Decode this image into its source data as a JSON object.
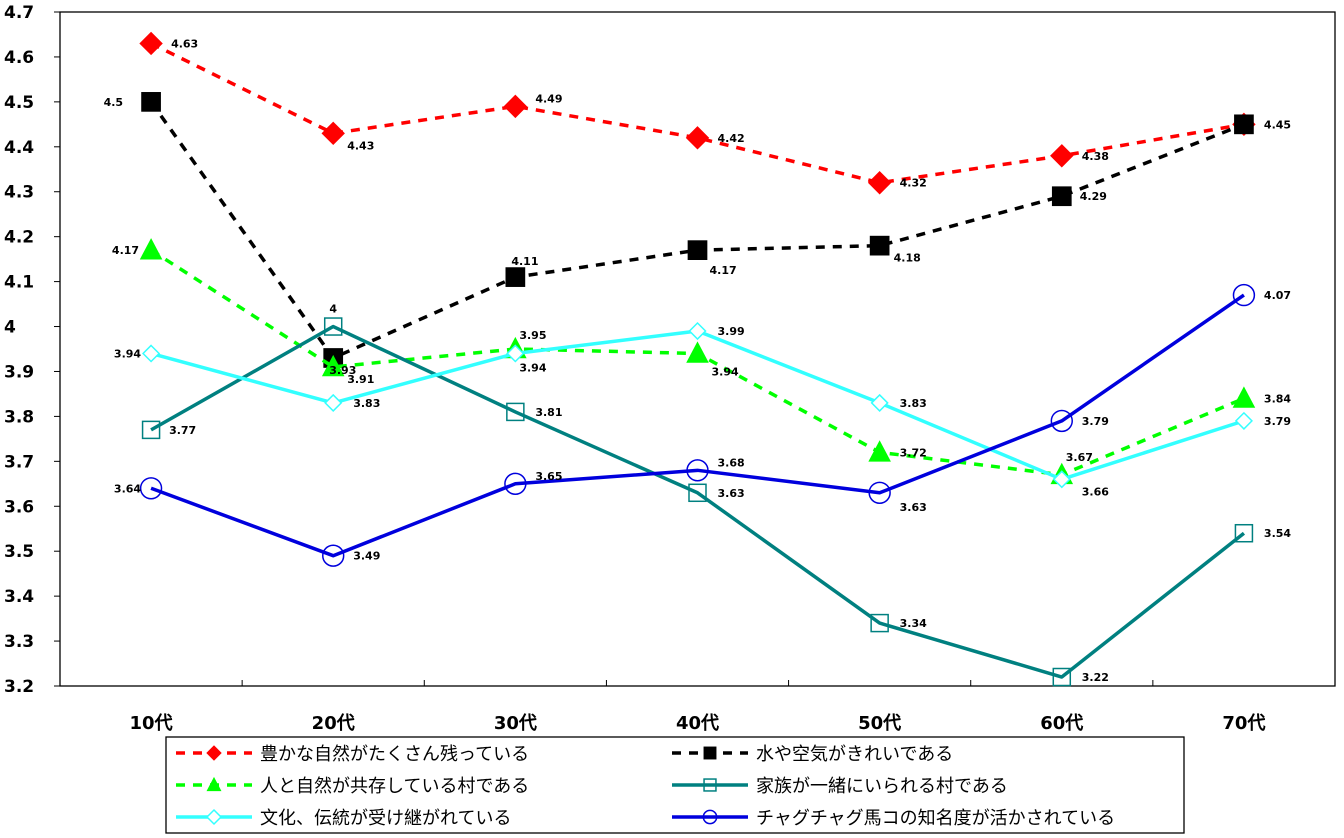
{
  "chart_data": {
    "type": "line",
    "categories": [
      "10代",
      "20代",
      "30代",
      "40代",
      "50代",
      "60代",
      "70代"
    ],
    "ylim": [
      3.2,
      4.7
    ],
    "yticks": [
      "3.2",
      "3.3",
      "3.4",
      "3.5",
      "3.6",
      "3.7",
      "3.8",
      "3.9",
      "4",
      "4.1",
      "4.2",
      "4.3",
      "4.4",
      "4.5",
      "4.6",
      "4.7"
    ],
    "grid": false,
    "legend_position": "bottom",
    "series": [
      {
        "name": "豊かな自然がたくさん残っている",
        "values": [
          4.63,
          4.43,
          4.49,
          4.42,
          4.32,
          4.38,
          4.45
        ],
        "labels": [
          "4.63",
          "4.43",
          "4.49",
          "4.42",
          "4.32",
          "4.38",
          "4.45"
        ],
        "color": "#ff0000",
        "marker": "diamond-filled",
        "dash": true
      },
      {
        "name": "水や空気がきれいである",
        "values": [
          4.5,
          3.93,
          4.11,
          4.17,
          4.18,
          4.29,
          4.45
        ],
        "labels": [
          "4.5",
          "3.93",
          "4.11",
          "4.17",
          "4.18",
          "4.29",
          "4.45"
        ],
        "color": "#000000",
        "marker": "square-filled",
        "dash": true
      },
      {
        "name": "人と自然が共存している村である",
        "values": [
          4.17,
          3.91,
          3.95,
          3.94,
          3.72,
          3.67,
          3.84
        ],
        "labels": [
          "4.17",
          "3.91",
          "3.95",
          "3.94",
          "3.72",
          "3.67",
          "3.84"
        ],
        "color": "#00ff00",
        "marker": "triangle-filled",
        "dash": true
      },
      {
        "name": "家族が一緒にいられる村である",
        "values": [
          3.77,
          4.0,
          3.81,
          3.63,
          3.34,
          3.22,
          3.54
        ],
        "labels": [
          "3.77",
          "4",
          "3.81",
          "3.63",
          "3.34",
          "3.22",
          "3.54"
        ],
        "color": "#008080",
        "marker": "square-open",
        "dash": false
      },
      {
        "name": "文化、伝統が受け継がれている",
        "values": [
          3.94,
          3.83,
          3.94,
          3.99,
          3.83,
          3.66,
          3.79
        ],
        "labels": [
          "3.94",
          "3.83",
          "3.94",
          "3.99",
          "3.83",
          "3.66",
          "3.79"
        ],
        "color": "#33ffff",
        "marker": "diamond-open",
        "dash": false
      },
      {
        "name": "チャグチャグ馬コの知名度が活かされている",
        "values": [
          3.64,
          3.49,
          3.65,
          3.68,
          3.63,
          3.79,
          4.07
        ],
        "labels": [
          "3.64",
          "3.49",
          "3.65",
          "3.68",
          "3.63",
          "3.79",
          "4.07"
        ],
        "color": "#0000dd",
        "marker": "circle-open",
        "dash": false
      }
    ]
  }
}
